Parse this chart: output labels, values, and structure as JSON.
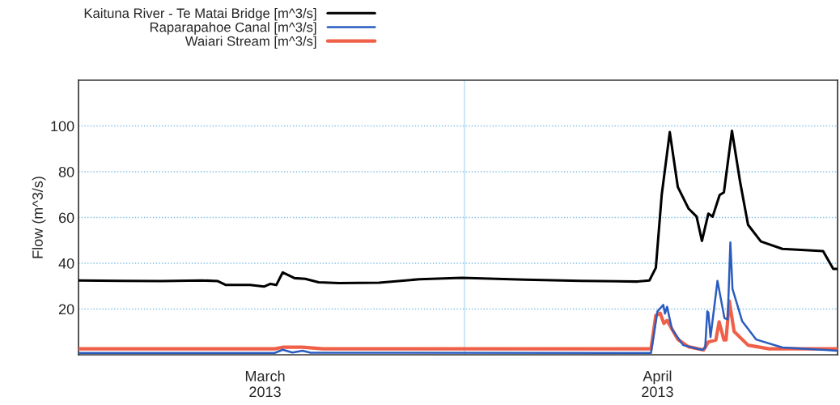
{
  "chart_data": {
    "type": "line",
    "ylabel": "Flow (m^3/s)",
    "xlim": [
      "2013-03-02",
      "2013-04-30"
    ],
    "ylim": [
      0,
      120
    ],
    "yticks": [
      20,
      40,
      60,
      80,
      100
    ],
    "xticks": [
      {
        "value": "2013-03-16T12:00",
        "label": "March\n2013"
      },
      {
        "value": "2013-04-16",
        "label": "April\n2013"
      }
    ],
    "grid": "y",
    "legend": "top left",
    "line_style": "solid",
    "marker": "none",
    "ref_lines": [
      {
        "axis": "x",
        "value": "2013-04-01",
        "color": "#a8d4ee"
      }
    ],
    "series": [
      {
        "name": "Kaituna River - Te Matai Bridge [m^3/s]",
        "color": "#000000",
        "x": [
          "2013-03-02T00:00",
          "2013-03-05T08:00",
          "2013-03-08T11:00",
          "2013-03-11T14:00",
          "2013-03-12T20:00",
          "2013-03-13T11:00",
          "2013-03-15T08:00",
          "2013-03-16T10:00",
          "2013-03-16T22:00",
          "2013-03-17T09:00",
          "2013-03-17T21:00",
          "2013-03-18T19:00",
          "2013-03-19T15:00",
          "2013-03-20T16:00",
          "2013-03-22T06:00",
          "2013-03-25T09:00",
          "2013-03-28T12:00",
          "2013-03-31T19:00",
          "2013-04-05T16:00",
          "2013-04-10T01:00",
          "2013-04-14T11:00",
          "2013-04-15T09:00",
          "2013-04-15T21:00",
          "2013-04-16T08:00",
          "2013-04-16T23:00",
          "2013-04-17T14:00",
          "2013-04-18T10:00",
          "2013-04-19T01:00",
          "2013-04-19T11:00",
          "2013-04-19T23:00",
          "2013-04-20T07:00",
          "2013-04-20T20:00",
          "2013-04-21T04:00",
          "2013-04-21T19:00",
          "2013-04-22T10:00",
          "2013-04-23T01:00",
          "2013-04-24T01:00",
          "2013-04-25T17:00",
          "2013-04-28T21:00",
          "2013-04-29T16:00",
          "2013-04-30T00:00"
        ],
        "values": [
          32.5,
          32.3,
          32.2,
          32.5,
          32.2,
          30.5,
          30.5,
          29.8,
          31,
          30.5,
          36,
          33.5,
          33.2,
          31.7,
          31.3,
          31.5,
          33,
          33.6,
          32.8,
          32.3,
          32,
          32.5,
          38,
          70,
          97.3,
          73.3,
          63.9,
          60.4,
          49.8,
          61.7,
          60.4,
          69.8,
          71,
          97.9,
          75.8,
          56.8,
          49.5,
          46.3,
          45.3,
          37.5,
          37.5
        ]
      },
      {
        "name": "Raparapahoe Canal [m^3/s]",
        "color": "#2a5cbf",
        "x": [
          "2013-03-02T00:00",
          "2013-03-17T06:00",
          "2013-03-17T21:00",
          "2013-03-18T15:00",
          "2013-03-19T10:00",
          "2013-03-20T01:00",
          "2013-04-15T12:00",
          "2013-04-16T00:00",
          "2013-04-16T11:00",
          "2013-04-16T14:00",
          "2013-04-16T18:00",
          "2013-04-17T03:00",
          "2013-04-18T00:00",
          "2013-04-19T11:00",
          "2013-04-19T17:00",
          "2013-04-19T21:00",
          "2013-04-19T23:00",
          "2013-04-20T03:00",
          "2013-04-20T16:00",
          "2013-04-21T05:00",
          "2013-04-21T11:00",
          "2013-04-21T16:00",
          "2013-04-21T20:00",
          "2013-04-22T14:00",
          "2013-04-23T16:00",
          "2013-04-25T17:00",
          "2013-04-29T22:00",
          "2013-04-30T00:00"
        ],
        "values": [
          0.8,
          0.8,
          2.2,
          1.0,
          1.8,
          0.9,
          0.8,
          19,
          21.8,
          18,
          21,
          11.2,
          4.2,
          2.1,
          3,
          19,
          18.5,
          7.7,
          32.3,
          16,
          15.5,
          49.1,
          28.8,
          14.7,
          6.7,
          3.2,
          1.8,
          1.8
        ]
      },
      {
        "name": "Waiari Stream [m^3/s]",
        "color": "#f06048",
        "x": [
          "2013-03-02T00:00",
          "2013-03-17T06:00",
          "2013-03-17T21:00",
          "2013-03-19T10:00",
          "2013-03-21T00:00",
          "2013-04-15T12:00",
          "2013-04-15T21:00",
          "2013-04-16T05:00",
          "2013-04-16T12:00",
          "2013-04-16T18:00",
          "2013-04-17T14:00",
          "2013-04-18T10:00",
          "2013-04-19T14:00",
          "2013-04-19T23:00",
          "2013-04-20T13:00",
          "2013-04-20T19:00",
          "2013-04-21T04:00",
          "2013-04-21T08:00",
          "2013-04-21T14:00",
          "2013-04-21T23:00",
          "2013-04-23T01:00",
          "2013-04-24T16:00",
          "2013-04-30T00:00"
        ],
        "values": [
          2.6,
          2.6,
          3.3,
          3.3,
          2.6,
          2.6,
          17.2,
          18.2,
          13.7,
          15,
          6.7,
          3.5,
          2.1,
          5.6,
          6.5,
          14.4,
          6.5,
          6.5,
          23.5,
          10.2,
          4.2,
          2.6,
          2.6
        ]
      }
    ]
  }
}
